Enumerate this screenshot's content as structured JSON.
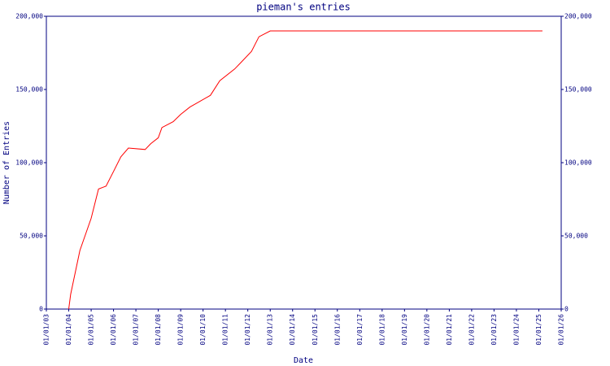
{
  "chart_data": {
    "type": "line",
    "title": "pieman's entries",
    "x_label": "Date",
    "y_label": "Number of Entries",
    "x": [
      "01/01/04",
      "02/01/04",
      "07/01/04",
      "01/01/05",
      "05/01/05",
      "09/01/05",
      "01/01/06",
      "05/01/06",
      "09/01/06",
      "06/01/07",
      "09/01/07",
      "01/01/08",
      "03/01/08",
      "09/01/08",
      "01/01/09",
      "06/01/09",
      "05/01/10",
      "10/01/10",
      "06/01/11",
      "09/01/11",
      "03/01/12",
      "07/01/12",
      "01/01/13",
      "07/01/13",
      "03/01/25"
    ],
    "series": [
      {
        "name": "pieman",
        "color": "#ff0000",
        "values": [
          0,
          10000,
          40000,
          62000,
          82000,
          84000,
          94000,
          104000,
          110000,
          109000,
          113000,
          117000,
          124000,
          128000,
          133000,
          138000,
          146000,
          156000,
          164000,
          168000,
          176000,
          186000,
          190000,
          190000,
          190000
        ]
      }
    ],
    "xlim": [
      "01/01/03",
      "01/01/26"
    ],
    "xticks": [
      "01/01/03",
      "01/01/04",
      "01/01/05",
      "01/01/06",
      "01/01/07",
      "01/01/08",
      "01/01/09",
      "01/01/10",
      "01/01/11",
      "01/01/12",
      "01/01/13",
      "01/01/14",
      "01/01/15",
      "01/01/16",
      "01/01/17",
      "01/01/18",
      "01/01/19",
      "01/01/20",
      "01/01/21",
      "01/01/22",
      "01/01/23",
      "01/01/24",
      "01/01/25",
      "01/01/26"
    ],
    "ylim": [
      0,
      200000
    ],
    "yticks": [
      0,
      {
        "value": 50000,
        "label": "50,000"
      },
      {
        "value": 100000,
        "label": "100,000"
      },
      {
        "value": 150000,
        "label": "150,000"
      },
      {
        "value": 200000,
        "label": "200,000"
      }
    ]
  }
}
